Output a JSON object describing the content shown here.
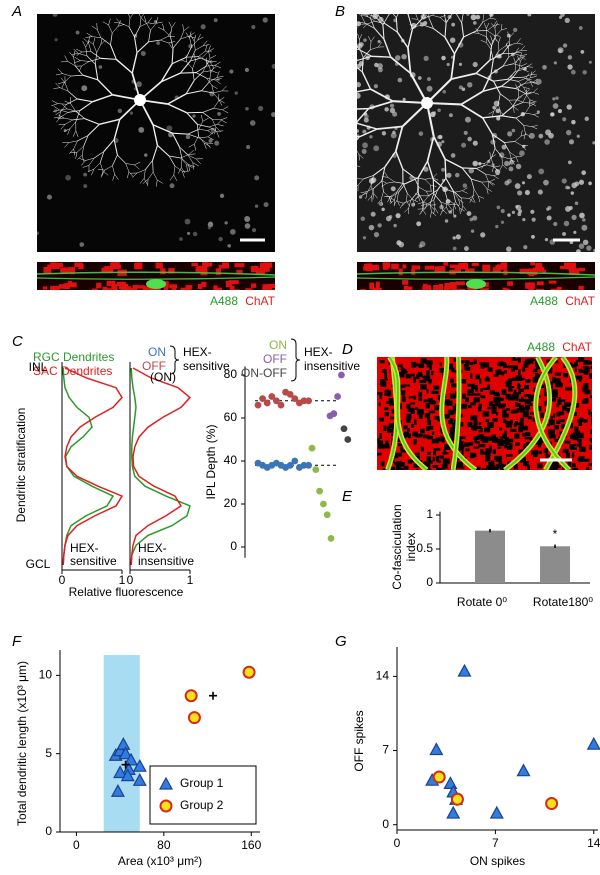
{
  "panel_labels": [
    "A",
    "B",
    "C",
    "D",
    "E",
    "F",
    "G"
  ],
  "image_captions": [
    {
      "green": "A488",
      "red": "ChAT"
    },
    {
      "green": "A488",
      "red": "ChAT"
    },
    {
      "green": "A488",
      "red": "ChAT"
    }
  ],
  "chart_data": [
    {
      "type": "profile",
      "legend_series": [
        {
          "name": "RGC Dendrites",
          "color": "#2a9a2a"
        },
        {
          "name": "SAC Dendrites",
          "color": "#e02020"
        }
      ],
      "ylabel": "Dendritic stratification",
      "xlabel": "Relative fluorescence",
      "depth": [
        0,
        5,
        10,
        15,
        20,
        25,
        30,
        35,
        40,
        45,
        50,
        55,
        60,
        65,
        70,
        75,
        80,
        85,
        90,
        95,
        100
      ],
      "ylim": [
        0,
        100
      ],
      "yticks": [
        {
          "value": 100,
          "label": "INL"
        },
        {
          "value": 0,
          "label": "GCL"
        }
      ],
      "xlim": [
        0,
        1
      ],
      "xticks": [
        0,
        1
      ],
      "subplots": [
        {
          "annotation": [
            "HEX-",
            "sensitive"
          ],
          "values": [
            [
              0.02,
              0.03,
              0.05,
              0.08,
              0.15,
              0.4,
              0.75,
              0.85,
              0.5,
              0.2,
              0.08,
              0.06,
              0.15,
              0.35,
              0.5,
              0.45,
              0.25,
              0.12,
              0.05,
              0.03,
              0.02
            ],
            [
              0.02,
              0.03,
              0.05,
              0.1,
              0.25,
              0.55,
              0.9,
              1.0,
              0.6,
              0.25,
              0.08,
              0.05,
              0.08,
              0.15,
              0.3,
              0.55,
              0.85,
              1.0,
              0.9,
              0.4,
              0.05
            ]
          ]
        },
        {
          "title": "(ON)",
          "annotation": [
            "HEX-",
            "insensitive"
          ],
          "values": [
            [
              0.02,
              0.03,
              0.1,
              0.3,
              0.7,
              0.95,
              1.0,
              0.6,
              0.25,
              0.08,
              0.04,
              0.03,
              0.03,
              0.04,
              0.06,
              0.08,
              0.1,
              0.08,
              0.05,
              0.03,
              0.02
            ],
            [
              0.02,
              0.03,
              0.05,
              0.1,
              0.3,
              0.6,
              0.85,
              0.75,
              0.4,
              0.15,
              0.06,
              0.05,
              0.08,
              0.15,
              0.3,
              0.55,
              0.85,
              1.0,
              0.8,
              0.35,
              0.05
            ]
          ]
        }
      ]
    },
    {
      "type": "strip",
      "ylabel": "IPL Depth (%)",
      "ylim": [
        -5,
        84
      ],
      "yticks": [
        0,
        20,
        40,
        60,
        80
      ],
      "reference_lines": [
        68,
        38
      ],
      "groups": [
        {
          "label": [
            "HEX-",
            "sensitive"
          ],
          "series": [
            {
              "name": "ON",
              "color": "#3d74b5",
              "values": [
                39,
                38,
                37,
                38,
                39,
                38,
                37,
                38,
                40,
                37,
                38,
                38
              ]
            },
            {
              "name": "OFF",
              "color": "#b84a4a",
              "values": [
                66,
                69,
                67,
                70,
                68,
                66,
                72,
                71,
                69,
                67,
                68,
                68
              ]
            }
          ]
        },
        {
          "label": [
            "HEX-",
            "insensitive"
          ],
          "series": [
            {
              "name": "ON",
              "color": "#8db84a",
              "values": [
                46,
                36,
                26,
                20,
                15,
                4
              ]
            },
            {
              "name": "OFF",
              "color": "#8a5db0",
              "values": [
                61,
                62,
                70,
                80
              ]
            },
            {
              "name": "ON-OFF",
              "color": "#444444",
              "values": [
                55,
                50
              ]
            }
          ]
        }
      ]
    },
    {
      "type": "bar",
      "ylabel": [
        "Co-fasciculation",
        "index"
      ],
      "categories": [
        "Rotate 0⁰",
        "Rotate180⁰"
      ],
      "values": [
        0.77,
        0.54
      ],
      "errors": [
        0.025,
        0.025
      ],
      "annotations": [
        null,
        "*"
      ],
      "color": "#8c8c8c",
      "ylim": [
        0,
        1.05
      ],
      "yticks": [
        0,
        0.5,
        1
      ]
    },
    {
      "type": "scatter",
      "xlabel": "Area (x10³ μm²)",
      "ylabel": "Total dendritic length (x10³ μm)",
      "xlim": [
        -15,
        168
      ],
      "ylim": [
        0,
        11.3
      ],
      "xticks": [
        0,
        80,
        160
      ],
      "yticks": [
        0,
        5,
        10
      ],
      "shaded_x": [
        25,
        58
      ],
      "shade_color": "#a8dcf2",
      "legend": "lower right",
      "series": [
        {
          "name": "Group 1",
          "marker": "triangle",
          "color": "#2f7de0",
          "edge": "#1f3f8f",
          "x": [
            36,
            40,
            43,
            45,
            50,
            58,
            48,
            40,
            47,
            58,
            38
          ],
          "values": [
            4.9,
            5.2,
            5.6,
            5.0,
            4.6,
            4.2,
            4.0,
            3.8,
            3.6,
            3.3,
            2.6
          ]
        },
        {
          "name": "Group 2",
          "marker": "circle",
          "color": "#f5e11a",
          "edge": "#d42a1a",
          "x": [
            105,
            108,
            158
          ],
          "values": [
            8.7,
            7.3,
            10.2
          ]
        },
        {
          "marker": "plus",
          "color": "#000000",
          "x": [
            125,
            45
          ],
          "values": [
            8.7,
            4.3
          ]
        }
      ]
    },
    {
      "type": "scatter",
      "xlabel": "ON spikes",
      "ylabel": "OFF spikes",
      "xlim": [
        0,
        14.3
      ],
      "ylim": [
        -0.5,
        16.3
      ],
      "xticks": [
        0,
        7,
        14
      ],
      "yticks": [
        0,
        7,
        14
      ],
      "series": [
        {
          "marker": "triangle",
          "color": "#2f7de0",
          "edge": "#1f3f8f",
          "x": [
            4.8,
            14,
            2.8,
            9,
            3.8,
            2.5,
            4,
            4.2,
            4,
            7.1
          ],
          "values": [
            14.5,
            7.6,
            7.1,
            5.1,
            3.9,
            4.2,
            3.1,
            2.4,
            1.1,
            1.1
          ]
        },
        {
          "marker": "circle",
          "color": "#f5e11a",
          "edge": "#d42a1a",
          "x": [
            3,
            4.3,
            11
          ],
          "values": [
            4.5,
            2.4,
            2.0
          ]
        }
      ]
    }
  ]
}
